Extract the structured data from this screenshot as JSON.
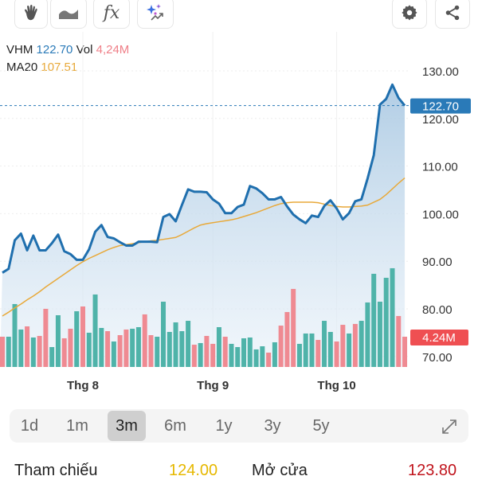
{
  "toolbar": {
    "left_icons": [
      "hand-icon",
      "area-chart-icon",
      "function-fx-icon",
      "ai-sparkle-chart-icon"
    ],
    "right_icons": [
      "gear-icon",
      "share-icon"
    ],
    "fx_label": "fx"
  },
  "legend": {
    "symbol": "VHM",
    "price": "122.70",
    "vol_label": "Vol",
    "vol": "4,24M",
    "ma_label": "MA20",
    "ma": "107.51"
  },
  "colors": {
    "price_line": "#1f6fae",
    "ma": "#e8a93a",
    "up": "#4fb3a9",
    "down": "#ef8a92",
    "price_tag": "#2a7ab8",
    "vol_tag": "#ef4f52",
    "ref": "#e6b800",
    "open": "#c0141c"
  },
  "chart_data": {
    "type": "line",
    "ylim": [
      70,
      130
    ],
    "y_ticks": [
      "130.00",
      "120.00",
      "110.00",
      "100.00",
      "90.00",
      "80.00",
      "70.00"
    ],
    "x_ticks": [
      {
        "label": "Thg 8",
        "index": 13
      },
      {
        "label": "Thg 9",
        "index": 34
      },
      {
        "label": "Thg 10",
        "index": 54
      }
    ],
    "last_price_tag": "122.70",
    "last_volume_tag": "4.24M",
    "price": [
      87.6,
      88.4,
      94.4,
      95.8,
      92.3,
      95.4,
      92.3,
      92.3,
      93.8,
      95.6,
      92.1,
      91.5,
      90.3,
      90.3,
      92.5,
      96.2,
      97.6,
      95.1,
      94.8,
      94.0,
      93.3,
      93.3,
      94.1,
      94.1,
      94.1,
      94.0,
      99.3,
      99.9,
      98.4,
      101.8,
      105.1,
      104.6,
      104.6,
      104.5,
      103.0,
      102.1,
      100.1,
      100.1,
      101.4,
      101.9,
      105.8,
      105.3,
      104.3,
      103.0,
      103.0,
      103.5,
      101.5,
      99.8,
      98.8,
      98.0,
      99.6,
      99.3,
      101.6,
      102.8,
      101.1,
      98.8,
      100.1,
      102.6,
      103.0,
      107.4,
      112.3,
      122.9,
      124.1,
      127.1,
      124.3,
      122.7
    ],
    "ma20": [
      78.5,
      79.3,
      80.2,
      81.0,
      81.9,
      82.7,
      83.6,
      84.6,
      85.5,
      86.4,
      87.3,
      88.2,
      89.1,
      89.9,
      90.6,
      91.2,
      91.8,
      92.4,
      92.9,
      93.3,
      93.5,
      93.7,
      93.9,
      94.1,
      94.3,
      94.4,
      94.6,
      94.8,
      95.0,
      95.6,
      96.3,
      97.0,
      97.6,
      97.9,
      98.1,
      98.3,
      98.5,
      98.7,
      99.0,
      99.4,
      99.8,
      100.2,
      100.7,
      101.2,
      101.7,
      102.1,
      102.3,
      102.4,
      102.4,
      102.4,
      102.4,
      102.3,
      102.0,
      101.7,
      101.5,
      101.4,
      101.4,
      101.5,
      101.6,
      101.8,
      102.4,
      103.0,
      104.0,
      105.2,
      106.4,
      107.5
    ],
    "volume_millions": [
      4.24,
      4.24,
      8.82,
      5.25,
      5.69,
      4.13,
      4.35,
      8.15,
      2.79,
      7.25,
      4.02,
      5.36,
      7.81,
      8.48,
      4.8,
      10.16,
      5.47,
      5.02,
      3.57,
      4.46,
      5.25,
      5.36,
      5.58,
      7.37,
      4.46,
      4.24,
      9.15,
      4.91,
      6.25,
      5.02,
      6.47,
      3.12,
      3.35,
      4.35,
      3.24,
      5.58,
      4.24,
      3.24,
      2.79,
      4.02,
      4.13,
      2.46,
      2.9,
      2.01,
      3.46,
      5.8,
      7.7,
      10.94,
      3.24,
      4.69,
      4.69,
      3.79,
      6.47,
      4.91,
      3.57,
      5.91,
      4.69,
      6.03,
      6.47,
      9.04,
      13.06,
      9.15,
      12.5,
      13.84,
      7.14,
      4.24
    ],
    "volume_direction": [
      "d",
      "u",
      "u",
      "u",
      "d",
      "u",
      "d",
      "d",
      "u",
      "u",
      "d",
      "d",
      "u",
      "d",
      "u",
      "u",
      "u",
      "d",
      "u",
      "d",
      "d",
      "u",
      "u",
      "d",
      "d",
      "u",
      "u",
      "u",
      "u",
      "u",
      "u",
      "d",
      "u",
      "d",
      "d",
      "u",
      "d",
      "u",
      "u",
      "u",
      "u",
      "u",
      "u",
      "d",
      "u",
      "d",
      "d",
      "d",
      "u",
      "u",
      "u",
      "d",
      "u",
      "u",
      "d",
      "d",
      "u",
      "d",
      "u",
      "u",
      "u",
      "u",
      "u",
      "u",
      "d",
      "d"
    ]
  },
  "ranges": [
    {
      "label": "1d"
    },
    {
      "label": "1m"
    },
    {
      "label": "3m",
      "selected": true
    },
    {
      "label": "6m"
    },
    {
      "label": "1y"
    },
    {
      "label": "3y"
    },
    {
      "label": "5y"
    }
  ],
  "expand_icon": "expand-icon",
  "stats": {
    "ref_label": "Tham chiếu",
    "ref_value": "124.00",
    "open_label": "Mở cửa",
    "open_value": "123.80"
  }
}
